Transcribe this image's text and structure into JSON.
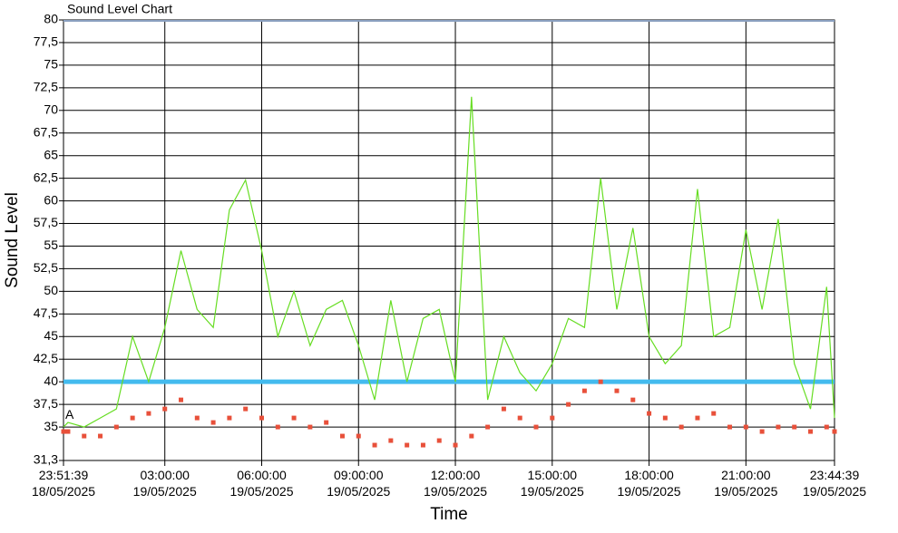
{
  "chart_data": {
    "type": "line",
    "title": "Sound Level Chart",
    "x_label": "Time",
    "y_label": "Sound Level",
    "annotation": "A",
    "x": [
      -0.139,
      0,
      0.5,
      1,
      1.5,
      2,
      2.5,
      3,
      3.5,
      4,
      4.5,
      5,
      5.5,
      6,
      6.5,
      7,
      7.5,
      8,
      8.5,
      9,
      9.5,
      10,
      10.5,
      11,
      11.5,
      12,
      12.5,
      13,
      13.5,
      14,
      14.5,
      15,
      15.5,
      16,
      16.5,
      17,
      17.5,
      18,
      18.5,
      19,
      19.5,
      20,
      20.5,
      21,
      21.5,
      22,
      22.5,
      23,
      23.5,
      23.744
    ],
    "series": [
      {
        "color": "#66dd22",
        "marker": "none",
        "values": [
          35,
          35.5,
          35,
          36,
          37,
          45,
          40,
          46,
          54.5,
          48,
          46,
          59,
          62.3,
          54.5,
          45,
          50,
          44,
          48,
          49,
          44,
          38,
          49,
          40,
          47,
          48,
          40,
          71.5,
          38,
          45,
          41,
          39,
          42,
          47,
          46,
          62.5,
          48,
          57,
          45,
          42,
          44,
          61.3,
          45,
          46,
          56.8,
          48,
          58,
          42,
          37,
          50.5,
          36
        ]
      },
      {
        "color": "#e8503a",
        "marker": "square",
        "values": [
          34.5,
          34.5,
          34,
          34,
          35,
          36,
          36.5,
          37,
          38,
          36,
          35.5,
          36,
          37,
          36,
          35,
          36,
          35,
          35.5,
          34,
          34,
          33,
          33.5,
          33,
          33,
          33.5,
          33,
          34,
          35,
          37,
          36,
          35,
          36,
          37.5,
          39,
          40,
          39,
          38,
          36.5,
          36,
          35,
          36,
          36.5,
          35,
          35,
          34.5,
          35,
          35,
          34.5,
          35,
          34.5
        ]
      }
    ],
    "reference_line": {
      "value": 40,
      "color": "#44bbee"
    },
    "xlim": [
      -0.139,
      23.744
    ],
    "xticks": [
      {
        "value": -0.139,
        "label": "23:51:39\n18/05/2025"
      },
      {
        "value": 3,
        "label": "03:00:00\n19/05/2025"
      },
      {
        "value": 6,
        "label": "06:00:00\n19/05/2025"
      },
      {
        "value": 9,
        "label": "09:00:00\n19/05/2025"
      },
      {
        "value": 12,
        "label": "12:00:00\n19/05/2025"
      },
      {
        "value": 15,
        "label": "15:00:00\n19/05/2025"
      },
      {
        "value": 18,
        "label": "18:00:00\n19/05/2025"
      },
      {
        "value": 21,
        "label": "21:00:00\n19/05/2025"
      },
      {
        "value": 23.744,
        "label": "23:44:39\n19/05/2025"
      }
    ],
    "ylim": [
      31.3,
      80
    ],
    "yticks": [
      {
        "value": 31.3,
        "label": "31,3"
      },
      35,
      {
        "value": 37.5,
        "label": "37,5"
      },
      40,
      {
        "value": 42.5,
        "label": "42,5"
      },
      45,
      {
        "value": 47.5,
        "label": "47,5"
      },
      50,
      {
        "value": 52.5,
        "label": "52,5"
      },
      55,
      {
        "value": 57.5,
        "label": "57,5"
      },
      60,
      {
        "value": 62.5,
        "label": "62,5"
      },
      65,
      {
        "value": 67.5,
        "label": "67,5"
      },
      70,
      {
        "value": 72.5,
        "label": "72,5"
      },
      75,
      {
        "value": 77.5,
        "label": "77,5"
      },
      80
    ],
    "grid": true
  }
}
